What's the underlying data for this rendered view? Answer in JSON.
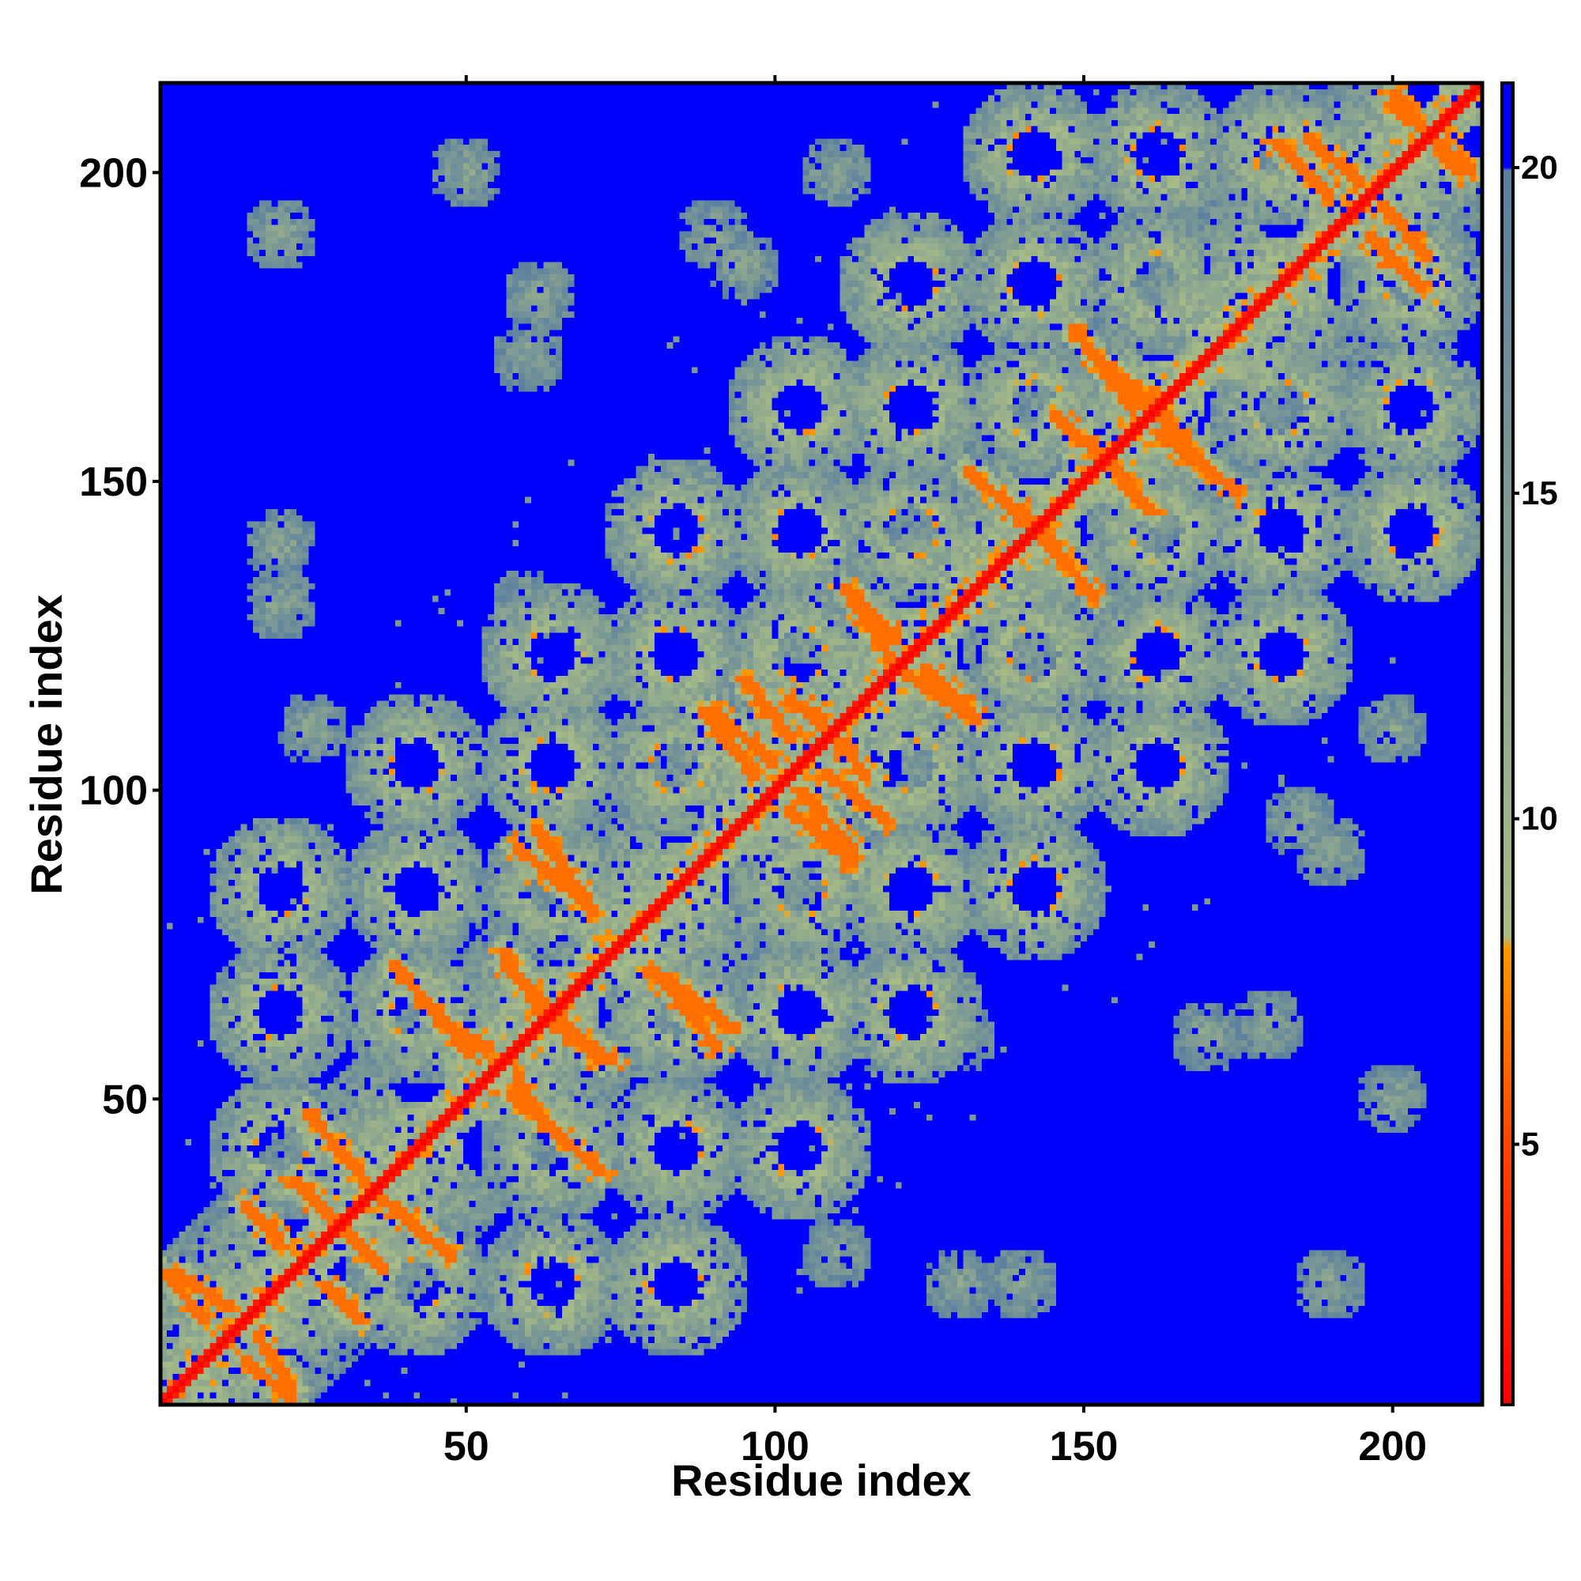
{
  "chart_data": {
    "type": "heatmap",
    "title": "",
    "xlabel": "Residue index",
    "ylabel": "Residue index",
    "n_residues": 214,
    "xlim": [
      1,
      214
    ],
    "ylim": [
      1,
      214
    ],
    "x_ticks": [
      50,
      100,
      150,
      200
    ],
    "y_ticks": [
      50,
      100,
      150,
      200
    ],
    "x_tick_labels": [
      "50",
      "100",
      "150",
      "200"
    ],
    "y_tick_labels": [
      "50",
      "100",
      "150",
      "200"
    ],
    "value_unit": "distance",
    "value_range": [
      1,
      21.3
    ],
    "saturation_value": 20,
    "colorbar": {
      "ticks": [
        5,
        10,
        15,
        20
      ],
      "tick_labels": [
        "5",
        "10",
        "15",
        "20"
      ],
      "stops": [
        {
          "value": 1,
          "color": "#ff0000"
        },
        {
          "value": 5,
          "color": "#ff4400"
        },
        {
          "value": 8,
          "color": "#ff9900"
        },
        {
          "value": 8.2,
          "color": "#a9bd85"
        },
        {
          "value": 20,
          "color": "#5b7fa0"
        },
        {
          "value": 20.01,
          "color": "#0000ff"
        }
      ]
    },
    "colors": {
      "far": "#0000ff",
      "mid": "#a9bd85",
      "close": "#ff9900",
      "diagonal": "#ff0000"
    },
    "structure": {
      "diagonal": "i = j, distance ~ 1",
      "near_diagonal_band_width_residues": 25,
      "block_centers": [
        20,
        42,
        64,
        84,
        104,
        122,
        142,
        162,
        182,
        203
      ],
      "orange_contact_strands": [
        {
          "from": [
            3,
            22
          ],
          "to": [
            12,
            16
          ]
        },
        {
          "from": [
            14,
            33
          ],
          "to": [
            20,
            27
          ]
        },
        {
          "from": [
            14,
            8
          ],
          "to": [
            22,
            1
          ]
        },
        {
          "from": [
            22,
            37
          ],
          "to": [
            33,
            26
          ]
        },
        {
          "from": [
            33,
            37
          ],
          "to": [
            48,
            24
          ]
        },
        {
          "from": [
            45,
            63
          ],
          "to": [
            54,
            58
          ]
        },
        {
          "from": [
            56,
            72
          ],
          "to": [
            64,
            64
          ]
        },
        {
          "from": [
            57,
            51
          ],
          "to": [
            72,
            38
          ]
        },
        {
          "from": [
            64,
            62
          ],
          "to": [
            74,
            56
          ]
        },
        {
          "from": [
            58,
            91
          ],
          "to": [
            70,
            81
          ]
        },
        {
          "from": [
            80,
            71
          ],
          "to": [
            94,
            61
          ]
        },
        {
          "from": [
            90,
            113
          ],
          "to": [
            100,
            104
          ]
        },
        {
          "from": [
            102,
            115
          ],
          "to": [
            113,
            106
          ]
        },
        {
          "from": [
            102,
            97
          ],
          "to": [
            113,
            88
          ]
        },
        {
          "from": [
            108,
            103
          ],
          "to": [
            118,
            95
          ]
        },
        {
          "from": [
            111,
            133
          ],
          "to": [
            120,
            124
          ]
        },
        {
          "from": [
            121,
            119
          ],
          "to": [
            133,
            111
          ]
        },
        {
          "from": [
            131,
            152
          ],
          "to": [
            146,
            139
          ]
        },
        {
          "from": [
            145,
            161
          ],
          "to": [
            157,
            150
          ]
        },
        {
          "from": [
            153,
            169
          ],
          "to": [
            164,
            160
          ]
        },
        {
          "from": [
            162,
            158
          ],
          "to": [
            175,
            148
          ]
        },
        {
          "from": [
            181,
            205
          ],
          "to": [
            190,
            196
          ]
        },
        {
          "from": [
            198,
            195
          ],
          "to": [
            206,
            186
          ]
        },
        {
          "from": [
            200,
            211
          ],
          "to": [
            213,
            200
          ]
        }
      ]
    }
  }
}
